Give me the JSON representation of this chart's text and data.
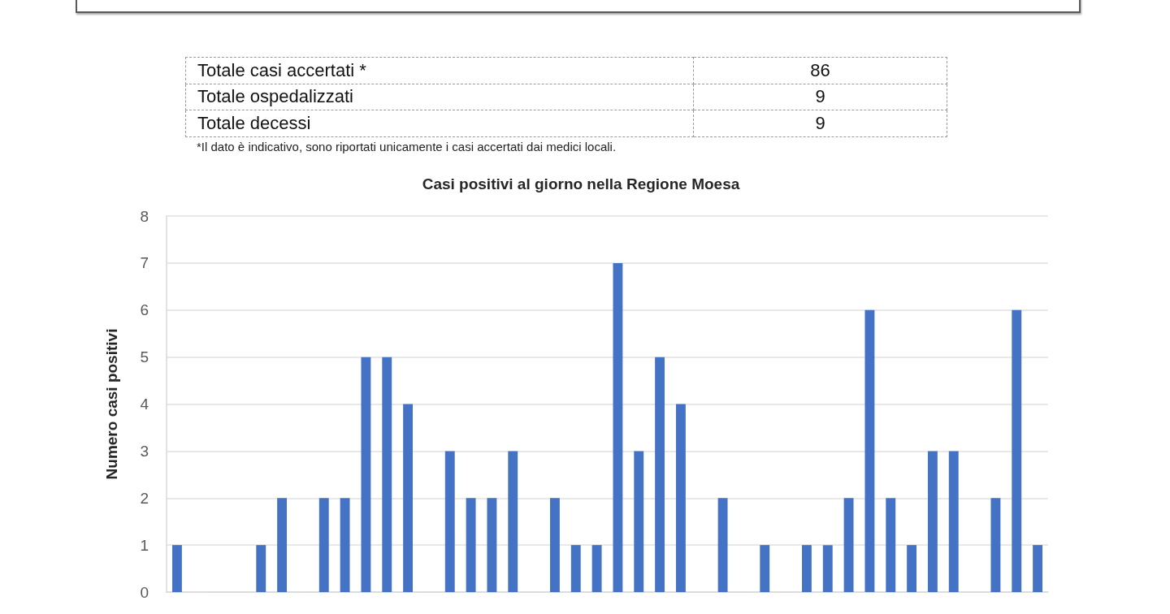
{
  "chart_data": [
    {
      "type": "other",
      "categories": [
        "Totale casi accertati  *",
        "Totale ospedalizzati",
        "Totale decessi"
      ],
      "values": [
        86,
        9,
        9
      ],
      "data_labels": true,
      "annotations": [
        "*Il dato è indicativo, sono riportati unicamente i casi accertati dai medici locali."
      ]
    },
    {
      "type": "bar",
      "title": "Casi positivi al giorno nella Regione Moesa",
      "ylabel": "Numero casi positivi",
      "categories": [
        null,
        null,
        null,
        null,
        null,
        null,
        null,
        null,
        null,
        null,
        null,
        null,
        null,
        null,
        null,
        null,
        null,
        null,
        null,
        null,
        null,
        null,
        null,
        null,
        null,
        null,
        null,
        null,
        null,
        null,
        null,
        null,
        null,
        null,
        null,
        null,
        null,
        null,
        null,
        null,
        null,
        null
      ],
      "values": [
        1,
        0,
        0,
        0,
        1,
        2,
        0,
        2,
        2,
        5,
        5,
        4,
        0,
        3,
        2,
        2,
        3,
        0,
        2,
        1,
        1,
        7,
        3,
        5,
        4,
        0,
        2,
        0,
        1,
        0,
        1,
        1,
        2,
        6,
        2,
        1,
        3,
        3,
        0,
        2,
        6,
        1
      ],
      "color": "#4472c4",
      "ylim": [
        0,
        8
      ],
      "yticks": [
        0,
        1,
        2,
        3,
        4,
        5,
        6,
        7,
        8
      ],
      "grid": "y"
    }
  ]
}
